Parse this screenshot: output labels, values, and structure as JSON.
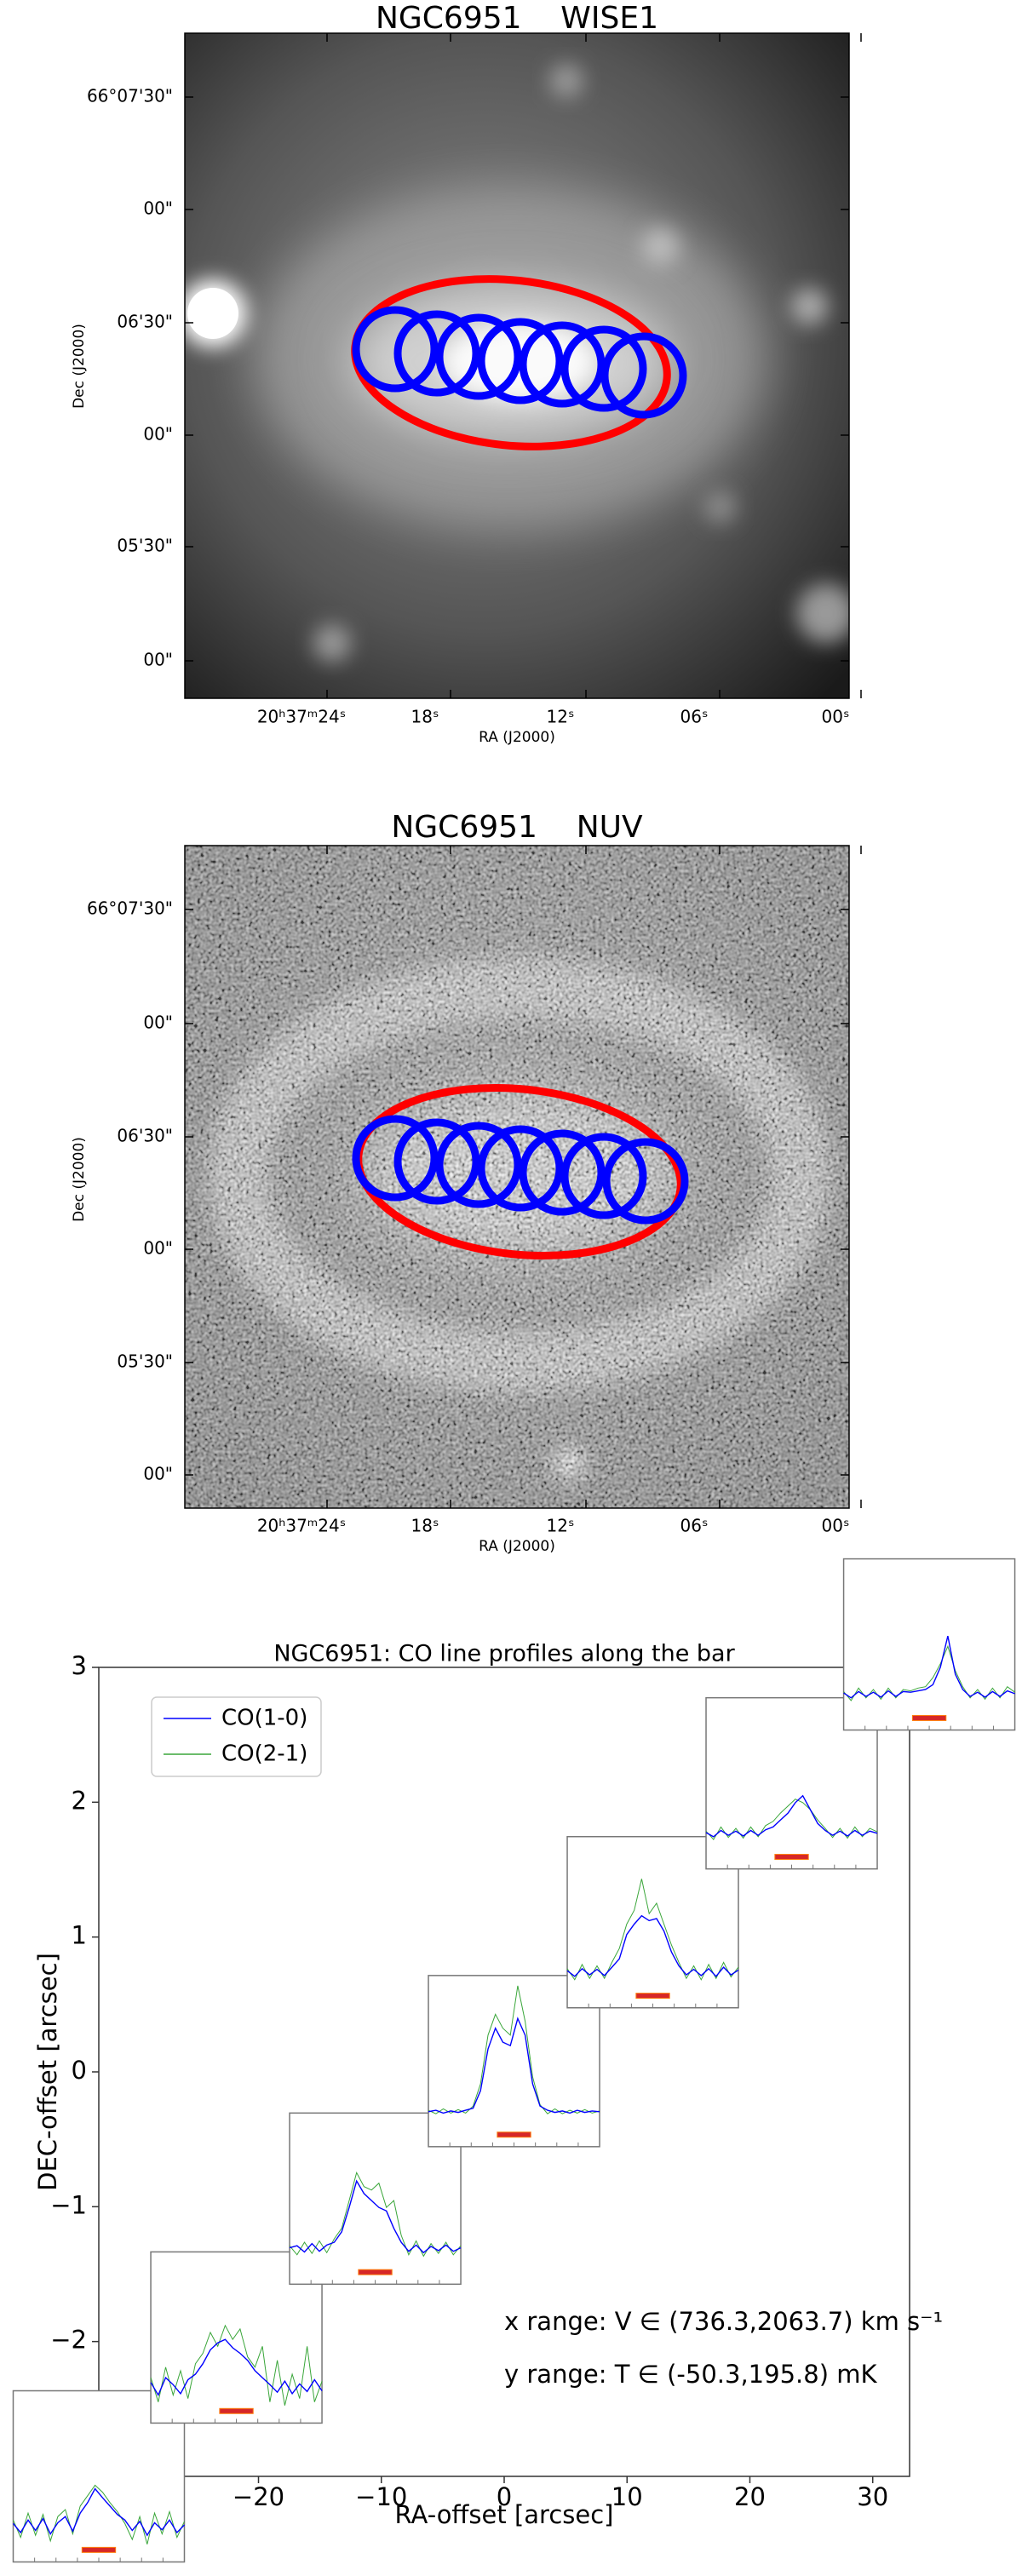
{
  "chart_data": [
    {
      "type": "image",
      "title": "NGC6951    WISE1",
      "xlabel": "RA (J2000)",
      "ylabel": "Dec (J2000)",
      "xtick_labels": [
        "20ʰ37ᵐ24ˢ",
        "18ˢ",
        "12ˢ",
        "06ˢ",
        "00ˢ"
      ],
      "ytick_labels": [
        "66°07'30\"",
        "00\"",
        "06'30\"",
        "00\"",
        "05'30\"",
        "00\""
      ]
    },
    {
      "type": "image",
      "title": "NGC6951    NUV",
      "xlabel": "RA (J2000)",
      "ylabel": "Dec (J2000)",
      "xtick_labels": [
        "20ʰ37ᵐ24ˢ",
        "18ˢ",
        "12ˢ",
        "06ˢ",
        "00ˢ"
      ],
      "ytick_labels": [
        "66°07'30\"",
        "00\"",
        "06'30\"",
        "00\"",
        "05'30\"",
        "00\""
      ]
    },
    {
      "type": "line",
      "title": "NGC6951: CO line profiles along the bar",
      "xlabel": "RA-offset [arcsec]",
      "ylabel": "DEC-offset [arcsec]",
      "xlim": [
        -33,
        33
      ],
      "ylim": [
        -3,
        3
      ],
      "xticks": [
        {
          "value": -20,
          "label": "−20"
        },
        {
          "value": -10,
          "label": "−10"
        },
        0,
        10,
        20,
        30
      ],
      "yticks": [
        {
          "value": -2,
          "label": "−2"
        },
        {
          "value": -1,
          "label": "−1"
        },
        0,
        1,
        2,
        3
      ],
      "legend": "upper left",
      "series": [
        {
          "name": "CO(1-0)",
          "color": "#0000ff"
        },
        {
          "name": "CO(2-1)",
          "color": "#3aa63a"
        }
      ],
      "spec_xlim": [
        736.3,
        2063.7
      ],
      "spec_ylim": [
        -50.3,
        195.8
      ],
      "bar_range": [
        1270,
        1530
      ],
      "bar_level": -33,
      "insets": [
        {
          "x": -33.0,
          "y": -3.0,
          "values": [
            [
              5,
              -8,
              10,
              -5,
              12,
              -10,
              6,
              15,
              -6,
              20,
              35,
              55,
              42,
              30,
              18,
              10,
              -5,
              8,
              -12,
              6,
              -4,
              10,
              -8,
              3
            ],
            [
              10,
              -15,
              20,
              -12,
              18,
              -20,
              15,
              25,
              -10,
              30,
              45,
              60,
              50,
              35,
              22,
              5,
              -18,
              15,
              -25,
              20,
              -10,
              22,
              -15,
              8
            ]
          ]
        },
        {
          "x": -21.8,
          "y": -1.97,
          "values": [
            [
              8,
              -10,
              15,
              5,
              -8,
              12,
              20,
              35,
              55,
              65,
              70,
              58,
              50,
              40,
              25,
              15,
              5,
              -6,
              10,
              -8,
              6,
              -5,
              12,
              -4
            ],
            [
              15,
              -20,
              30,
              -10,
              25,
              -15,
              35,
              50,
              80,
              60,
              90,
              70,
              85,
              45,
              30,
              60,
              -20,
              40,
              -25,
              20,
              -15,
              60,
              -20,
              10
            ]
          ]
        },
        {
          "x": -10.5,
          "y": -0.94,
          "values": [
            [
              2,
              5,
              -4,
              8,
              -3,
              6,
              10,
              25,
              60,
              98,
              80,
              70,
              60,
              55,
              30,
              10,
              -3,
              6,
              -5,
              4,
              -2,
              6,
              -3,
              2
            ],
            [
              5,
              -8,
              10,
              -6,
              12,
              -5,
              15,
              30,
              70,
              110,
              90,
              85,
              95,
              60,
              70,
              20,
              -8,
              12,
              -10,
              8,
              -6,
              10,
              -8,
              5
            ]
          ]
        },
        {
          "x": 0.8,
          "y": 0.08,
          "values": [
            [
              0,
              2,
              -2,
              1,
              -1,
              2,
              5,
              30,
              90,
              120,
              100,
              95,
              134,
              110,
              40,
              8,
              2,
              -1,
              1,
              -2,
              2,
              -1,
              1,
              0
            ],
            [
              2,
              -3,
              4,
              -2,
              3,
              -2,
              8,
              40,
              110,
              140,
              120,
              110,
              181,
              130,
              50,
              10,
              -3,
              4,
              -3,
              2,
              -2,
              3,
              -2,
              1
            ]
          ]
        },
        {
          "x": 12.1,
          "y": 1.11,
          "values": [
            [
              3,
              -5,
              6,
              -3,
              5,
              -4,
              8,
              20,
              55,
              70,
              82,
              75,
              78,
              60,
              30,
              10,
              -3,
              5,
              -4,
              6,
              -5,
              8,
              -3,
              4
            ],
            [
              6,
              -10,
              12,
              -8,
              10,
              -8,
              15,
              35,
              70,
              90,
              135,
              85,
              100,
              70,
              40,
              15,
              -8,
              10,
              -10,
              12,
              -8,
              15,
              -6,
              8
            ]
          ]
        },
        {
          "x": 23.4,
          "y": 2.14,
          "values": [
            [
              2,
              -4,
              5,
              -2,
              4,
              -3,
              5,
              -2,
              6,
              10,
              20,
              30,
              45,
              55,
              35,
              15,
              5,
              -2,
              4,
              -3,
              5,
              -2,
              4,
              1
            ],
            [
              4,
              -8,
              10,
              -5,
              8,
              -6,
              10,
              -4,
              12,
              18,
              30,
              40,
              50,
              45,
              35,
              20,
              8,
              -5,
              8,
              -6,
              10,
              -4,
              8,
              3
            ]
          ]
        },
        {
          "x": 34.6,
          "y": 3.17,
          "values": [
            [
              3,
              -4,
              5,
              -2,
              4,
              -3,
              6,
              -2,
              5,
              4,
              6,
              8,
              15,
              40,
              85,
              30,
              8,
              -2,
              4,
              -3,
              5,
              -2,
              6,
              2
            ],
            [
              5,
              -8,
              10,
              -4,
              8,
              -6,
              10,
              -4,
              8,
              6,
              10,
              12,
              25,
              45,
              70,
              35,
              12,
              -4,
              8,
              -6,
              10,
              -4,
              12,
              4
            ]
          ]
        }
      ],
      "annotations": [
        "x range: V ∈ (736.3,2063.7) km s⁻¹",
        "y range: T ∈ (-50.3,195.8) mK"
      ]
    }
  ]
}
